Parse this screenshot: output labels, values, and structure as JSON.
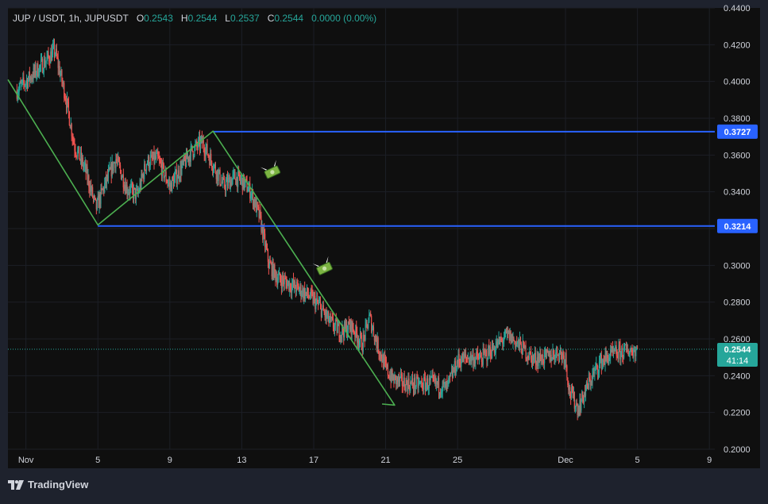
{
  "header": {
    "symbol": "JUP / USDT, 1h, JUPUSDT",
    "o_label": "O",
    "o_value": "0.2543",
    "h_label": "H",
    "h_value": "0.2544",
    "l_label": "L",
    "l_value": "0.2537",
    "c_label": "C",
    "c_value": "0.2544",
    "change": "0.0000 (0.00%)"
  },
  "branding": {
    "logo_text": "TradingView",
    "logo_icon": "tradingview-logo-icon"
  },
  "colors": {
    "background": "#0f0f0f",
    "frame": "#1e222d",
    "up": "#26a69a",
    "down": "#ef5350",
    "pattern_line": "#4caf50",
    "level_line": "#2962ff",
    "text": "#d1d4dc"
  },
  "chart_data": {
    "type": "candlestick",
    "title": "JUP / USDT, 1h, JUPUSDT",
    "xlabel": "",
    "ylabel": "",
    "grid": true,
    "ylim": [
      0.2,
      0.44
    ],
    "x_range_days": [
      0,
      39.3
    ],
    "y_ticks": [
      "0.4400",
      "0.4200",
      "0.4000",
      "0.3800",
      "0.3600",
      "0.3400",
      "0.3200",
      "0.3000",
      "0.2800",
      "0.2600",
      "0.2400",
      "0.2200",
      "0.2000"
    ],
    "x_ticks": [
      {
        "label": "Nov",
        "day": 1
      },
      {
        "label": "5",
        "day": 5
      },
      {
        "label": "9",
        "day": 9
      },
      {
        "label": "13",
        "day": 13
      },
      {
        "label": "17",
        "day": 17
      },
      {
        "label": "21",
        "day": 21
      },
      {
        "label": "25",
        "day": 25
      },
      {
        "label": "Dec",
        "day": 31
      },
      {
        "label": "5",
        "day": 35
      },
      {
        "label": "9",
        "day": 39
      }
    ],
    "price_path": [
      [
        0.5,
        0.395
      ],
      [
        1.2,
        0.402
      ],
      [
        2.0,
        0.41
      ],
      [
        2.6,
        0.417
      ],
      [
        3.2,
        0.392
      ],
      [
        3.7,
        0.365
      ],
      [
        4.3,
        0.352
      ],
      [
        4.9,
        0.331
      ],
      [
        5.4,
        0.344
      ],
      [
        6.0,
        0.358
      ],
      [
        6.6,
        0.342
      ],
      [
        7.2,
        0.338
      ],
      [
        7.7,
        0.356
      ],
      [
        8.3,
        0.358
      ],
      [
        9.0,
        0.343
      ],
      [
        9.6,
        0.352
      ],
      [
        10.2,
        0.362
      ],
      [
        10.8,
        0.367
      ],
      [
        11.5,
        0.353
      ],
      [
        12.0,
        0.343
      ],
      [
        12.6,
        0.348
      ],
      [
        13.1,
        0.345
      ],
      [
        13.5,
        0.34
      ],
      [
        14.0,
        0.326
      ],
      [
        14.5,
        0.301
      ],
      [
        15.0,
        0.293
      ],
      [
        15.6,
        0.29
      ],
      [
        16.2,
        0.287
      ],
      [
        16.8,
        0.283
      ],
      [
        17.3,
        0.278
      ],
      [
        17.9,
        0.269
      ],
      [
        18.5,
        0.264
      ],
      [
        19.1,
        0.267
      ],
      [
        19.7,
        0.257
      ],
      [
        20.1,
        0.272
      ],
      [
        20.5,
        0.258
      ],
      [
        21.0,
        0.244
      ],
      [
        21.4,
        0.238
      ],
      [
        22.0,
        0.236
      ],
      [
        22.8,
        0.235
      ],
      [
        23.6,
        0.236
      ],
      [
        24.4,
        0.233
      ],
      [
        25.0,
        0.248
      ],
      [
        25.6,
        0.25
      ],
      [
        26.3,
        0.249
      ],
      [
        27.0,
        0.255
      ],
      [
        27.8,
        0.262
      ],
      [
        28.5,
        0.256
      ],
      [
        29.2,
        0.249
      ],
      [
        30.0,
        0.25
      ],
      [
        30.6,
        0.253
      ],
      [
        31.0,
        0.25
      ],
      [
        31.2,
        0.232
      ],
      [
        31.7,
        0.222
      ],
      [
        32.3,
        0.236
      ],
      [
        32.9,
        0.247
      ],
      [
        33.5,
        0.251
      ],
      [
        34.2,
        0.253
      ],
      [
        35.0,
        0.2544
      ]
    ],
    "pattern_line": {
      "name": "",
      "points": [
        [
          0.0,
          0.401
        ],
        [
          5.0,
          0.322
        ],
        [
          11.4,
          0.373
        ],
        [
          21.5,
          0.224
        ],
        [
          20.8,
          0.2246
        ]
      ]
    },
    "horizontal_levels": [
      {
        "value": 0.3727,
        "label": "0.3727",
        "start_day": 11.4
      },
      {
        "value": 0.3214,
        "label": "0.3214",
        "start_day": 5.0
      }
    ],
    "last_price": {
      "value": 0.2544,
      "label": "0.2544",
      "countdown": "41:14"
    },
    "annotations": [
      {
        "icon": "money-with-wings-icon",
        "day": 14.7,
        "value": 0.3507
      },
      {
        "icon": "money-with-wings-icon",
        "day": 17.6,
        "value": 0.2983
      }
    ]
  }
}
